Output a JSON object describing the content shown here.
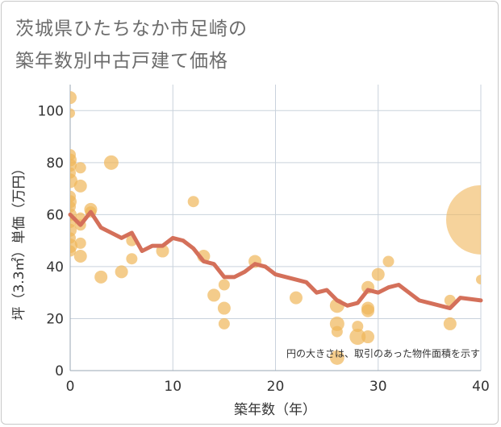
{
  "chart_data": {
    "type": "scatter",
    "title_lines": [
      "茨城県ひたちなか市足崎の",
      "築年数別中古戸建て価格"
    ],
    "xlabel": "築年数（年）",
    "ylabel": "坪（3.3㎡）単価（万円）",
    "xlim": [
      0,
      40
    ],
    "ylim": [
      0,
      110
    ],
    "xticks": [
      0,
      10,
      20,
      30,
      40
    ],
    "yticks": [
      0,
      20,
      40,
      60,
      80,
      100
    ],
    "grid": true,
    "annotation": "円の大きさは、取引のあった物件面積を示す",
    "colors": {
      "bubble": "#f0b65a",
      "line": "#d4705a",
      "grid": "#c9d2dc",
      "axis_text": "#333333"
    },
    "bubbles": [
      {
        "x": 0,
        "y": 105,
        "s": 8
      },
      {
        "x": 0,
        "y": 99,
        "s": 6
      },
      {
        "x": 0,
        "y": 83,
        "s": 7
      },
      {
        "x": 0,
        "y": 81,
        "s": 8
      },
      {
        "x": 0,
        "y": 79,
        "s": 8
      },
      {
        "x": 0,
        "y": 76,
        "s": 7
      },
      {
        "x": 0,
        "y": 73,
        "s": 9
      },
      {
        "x": 0,
        "y": 67,
        "s": 7
      },
      {
        "x": 0,
        "y": 65,
        "s": 8
      },
      {
        "x": 0,
        "y": 63,
        "s": 7
      },
      {
        "x": 0,
        "y": 60,
        "s": 8
      },
      {
        "x": 0,
        "y": 57,
        "s": 7
      },
      {
        "x": 0,
        "y": 54,
        "s": 8
      },
      {
        "x": 0,
        "y": 51,
        "s": 7
      },
      {
        "x": 0,
        "y": 48,
        "s": 9
      },
      {
        "x": 0,
        "y": 46,
        "s": 7
      },
      {
        "x": 1,
        "y": 78,
        "s": 7
      },
      {
        "x": 1,
        "y": 71,
        "s": 8
      },
      {
        "x": 1,
        "y": 59,
        "s": 6
      },
      {
        "x": 1,
        "y": 56,
        "s": 7
      },
      {
        "x": 1,
        "y": 49,
        "s": 7
      },
      {
        "x": 1,
        "y": 44,
        "s": 8
      },
      {
        "x": 2,
        "y": 62,
        "s": 8
      },
      {
        "x": 2,
        "y": 61,
        "s": 7
      },
      {
        "x": 3,
        "y": 36,
        "s": 8
      },
      {
        "x": 4,
        "y": 80,
        "s": 9
      },
      {
        "x": 5,
        "y": 38,
        "s": 8
      },
      {
        "x": 6,
        "y": 50,
        "s": 7
      },
      {
        "x": 6,
        "y": 43,
        "s": 7
      },
      {
        "x": 9,
        "y": 46,
        "s": 8
      },
      {
        "x": 12,
        "y": 65,
        "s": 7
      },
      {
        "x": 13,
        "y": 44,
        "s": 8
      },
      {
        "x": 14,
        "y": 29,
        "s": 8
      },
      {
        "x": 15,
        "y": 33,
        "s": 7
      },
      {
        "x": 15,
        "y": 24,
        "s": 8
      },
      {
        "x": 15,
        "y": 18,
        "s": 7
      },
      {
        "x": 18,
        "y": 42,
        "s": 8
      },
      {
        "x": 22,
        "y": 28,
        "s": 8
      },
      {
        "x": 26,
        "y": 25,
        "s": 9
      },
      {
        "x": 26,
        "y": 18,
        "s": 9
      },
      {
        "x": 26,
        "y": 15,
        "s": 7
      },
      {
        "x": 26,
        "y": 5,
        "s": 9
      },
      {
        "x": 28,
        "y": 17,
        "s": 7
      },
      {
        "x": 28,
        "y": 13,
        "s": 10
      },
      {
        "x": 29,
        "y": 32,
        "s": 8
      },
      {
        "x": 29,
        "y": 24,
        "s": 8
      },
      {
        "x": 29,
        "y": 23,
        "s": 8
      },
      {
        "x": 29,
        "y": 13,
        "s": 8
      },
      {
        "x": 30,
        "y": 37,
        "s": 8
      },
      {
        "x": 31,
        "y": 42,
        "s": 7
      },
      {
        "x": 37,
        "y": 27,
        "s": 7
      },
      {
        "x": 37,
        "y": 18,
        "s": 8
      },
      {
        "x": 40,
        "y": 58,
        "s": 43
      },
      {
        "x": 40,
        "y": 35,
        "s": 6
      }
    ],
    "trend": {
      "x": [
        0,
        1,
        2,
        3,
        4,
        5,
        6,
        7,
        8,
        9,
        10,
        11,
        12,
        13,
        14,
        15,
        16,
        17,
        18,
        19,
        20,
        21,
        22,
        23,
        24,
        25,
        26,
        27,
        28,
        29,
        30,
        31,
        32,
        33,
        34,
        35,
        36,
        37,
        38,
        39,
        40
      ],
      "y": [
        60,
        56,
        61,
        55,
        53,
        51,
        53,
        46,
        48,
        48,
        51,
        50,
        47,
        42,
        41,
        36,
        36,
        38,
        41,
        40,
        37,
        36,
        35,
        34,
        30,
        31,
        27,
        25,
        26,
        31,
        30,
        32,
        33,
        30,
        27,
        26,
        25,
        24,
        28,
        27.5,
        27
      ]
    }
  }
}
